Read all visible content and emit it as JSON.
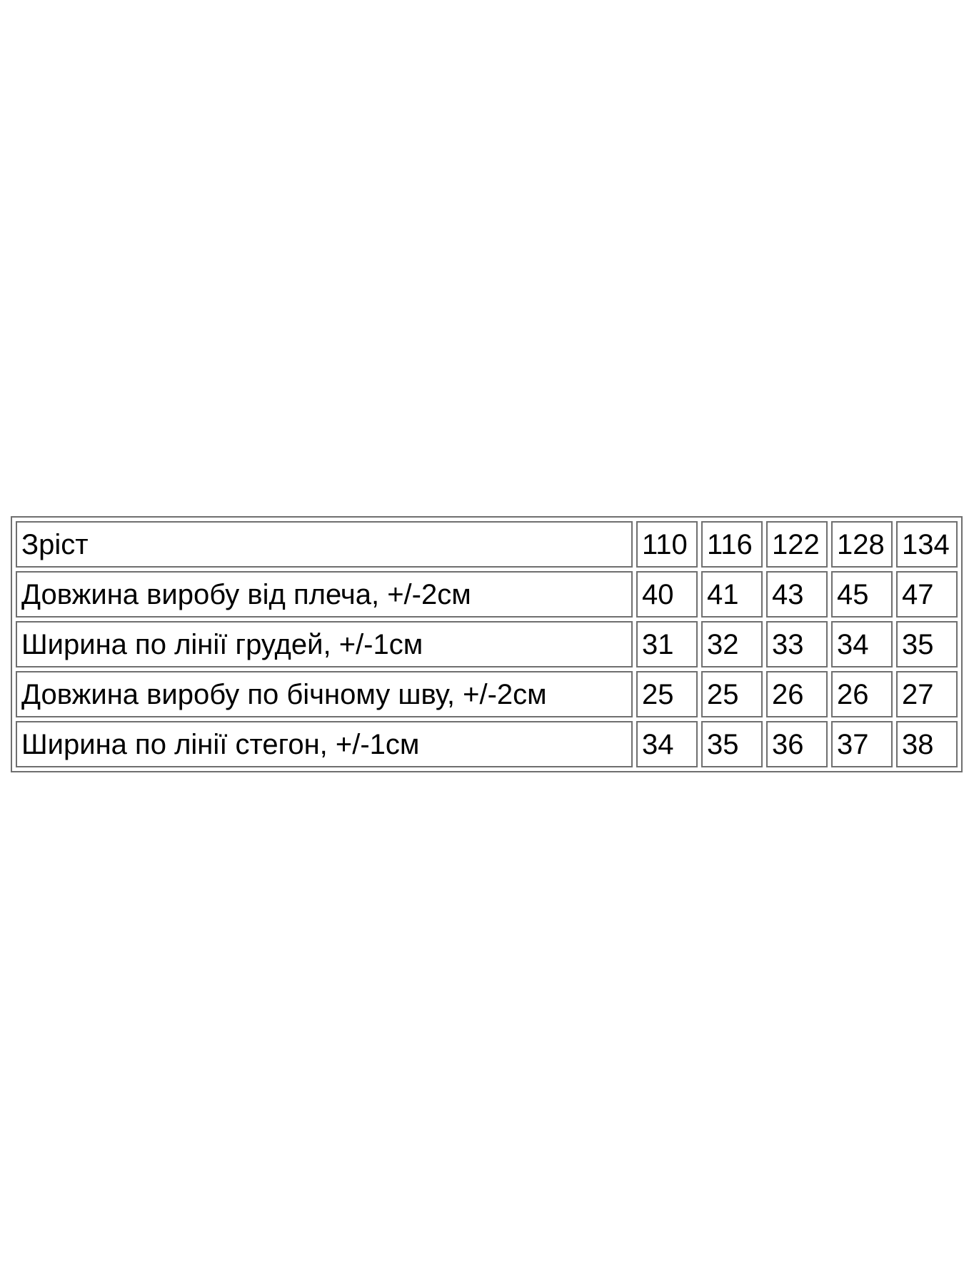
{
  "size_table": {
    "header_row": {
      "label": "Зріст",
      "sizes": [
        "110",
        "116",
        "122",
        "128",
        "134"
      ]
    },
    "rows": [
      {
        "label": "Довжина виробу від плеча, +/-2см",
        "values": [
          "40",
          "41",
          "43",
          "45",
          "47"
        ]
      },
      {
        "label": "Ширина по лінії грудей, +/-1см",
        "values": [
          "31",
          "32",
          "33",
          "34",
          "35"
        ]
      },
      {
        "label": "Довжина виробу по бічному шву, +/-2см",
        "values": [
          "25",
          "25",
          "26",
          "26",
          "27"
        ]
      },
      {
        "label": "Ширина по лінії стегон, +/-1см",
        "values": [
          "34",
          "35",
          "36",
          "37",
          "38"
        ]
      }
    ],
    "colors": {
      "border": "#6f6f6f",
      "text": "#000000",
      "background": "#ffffff"
    }
  }
}
